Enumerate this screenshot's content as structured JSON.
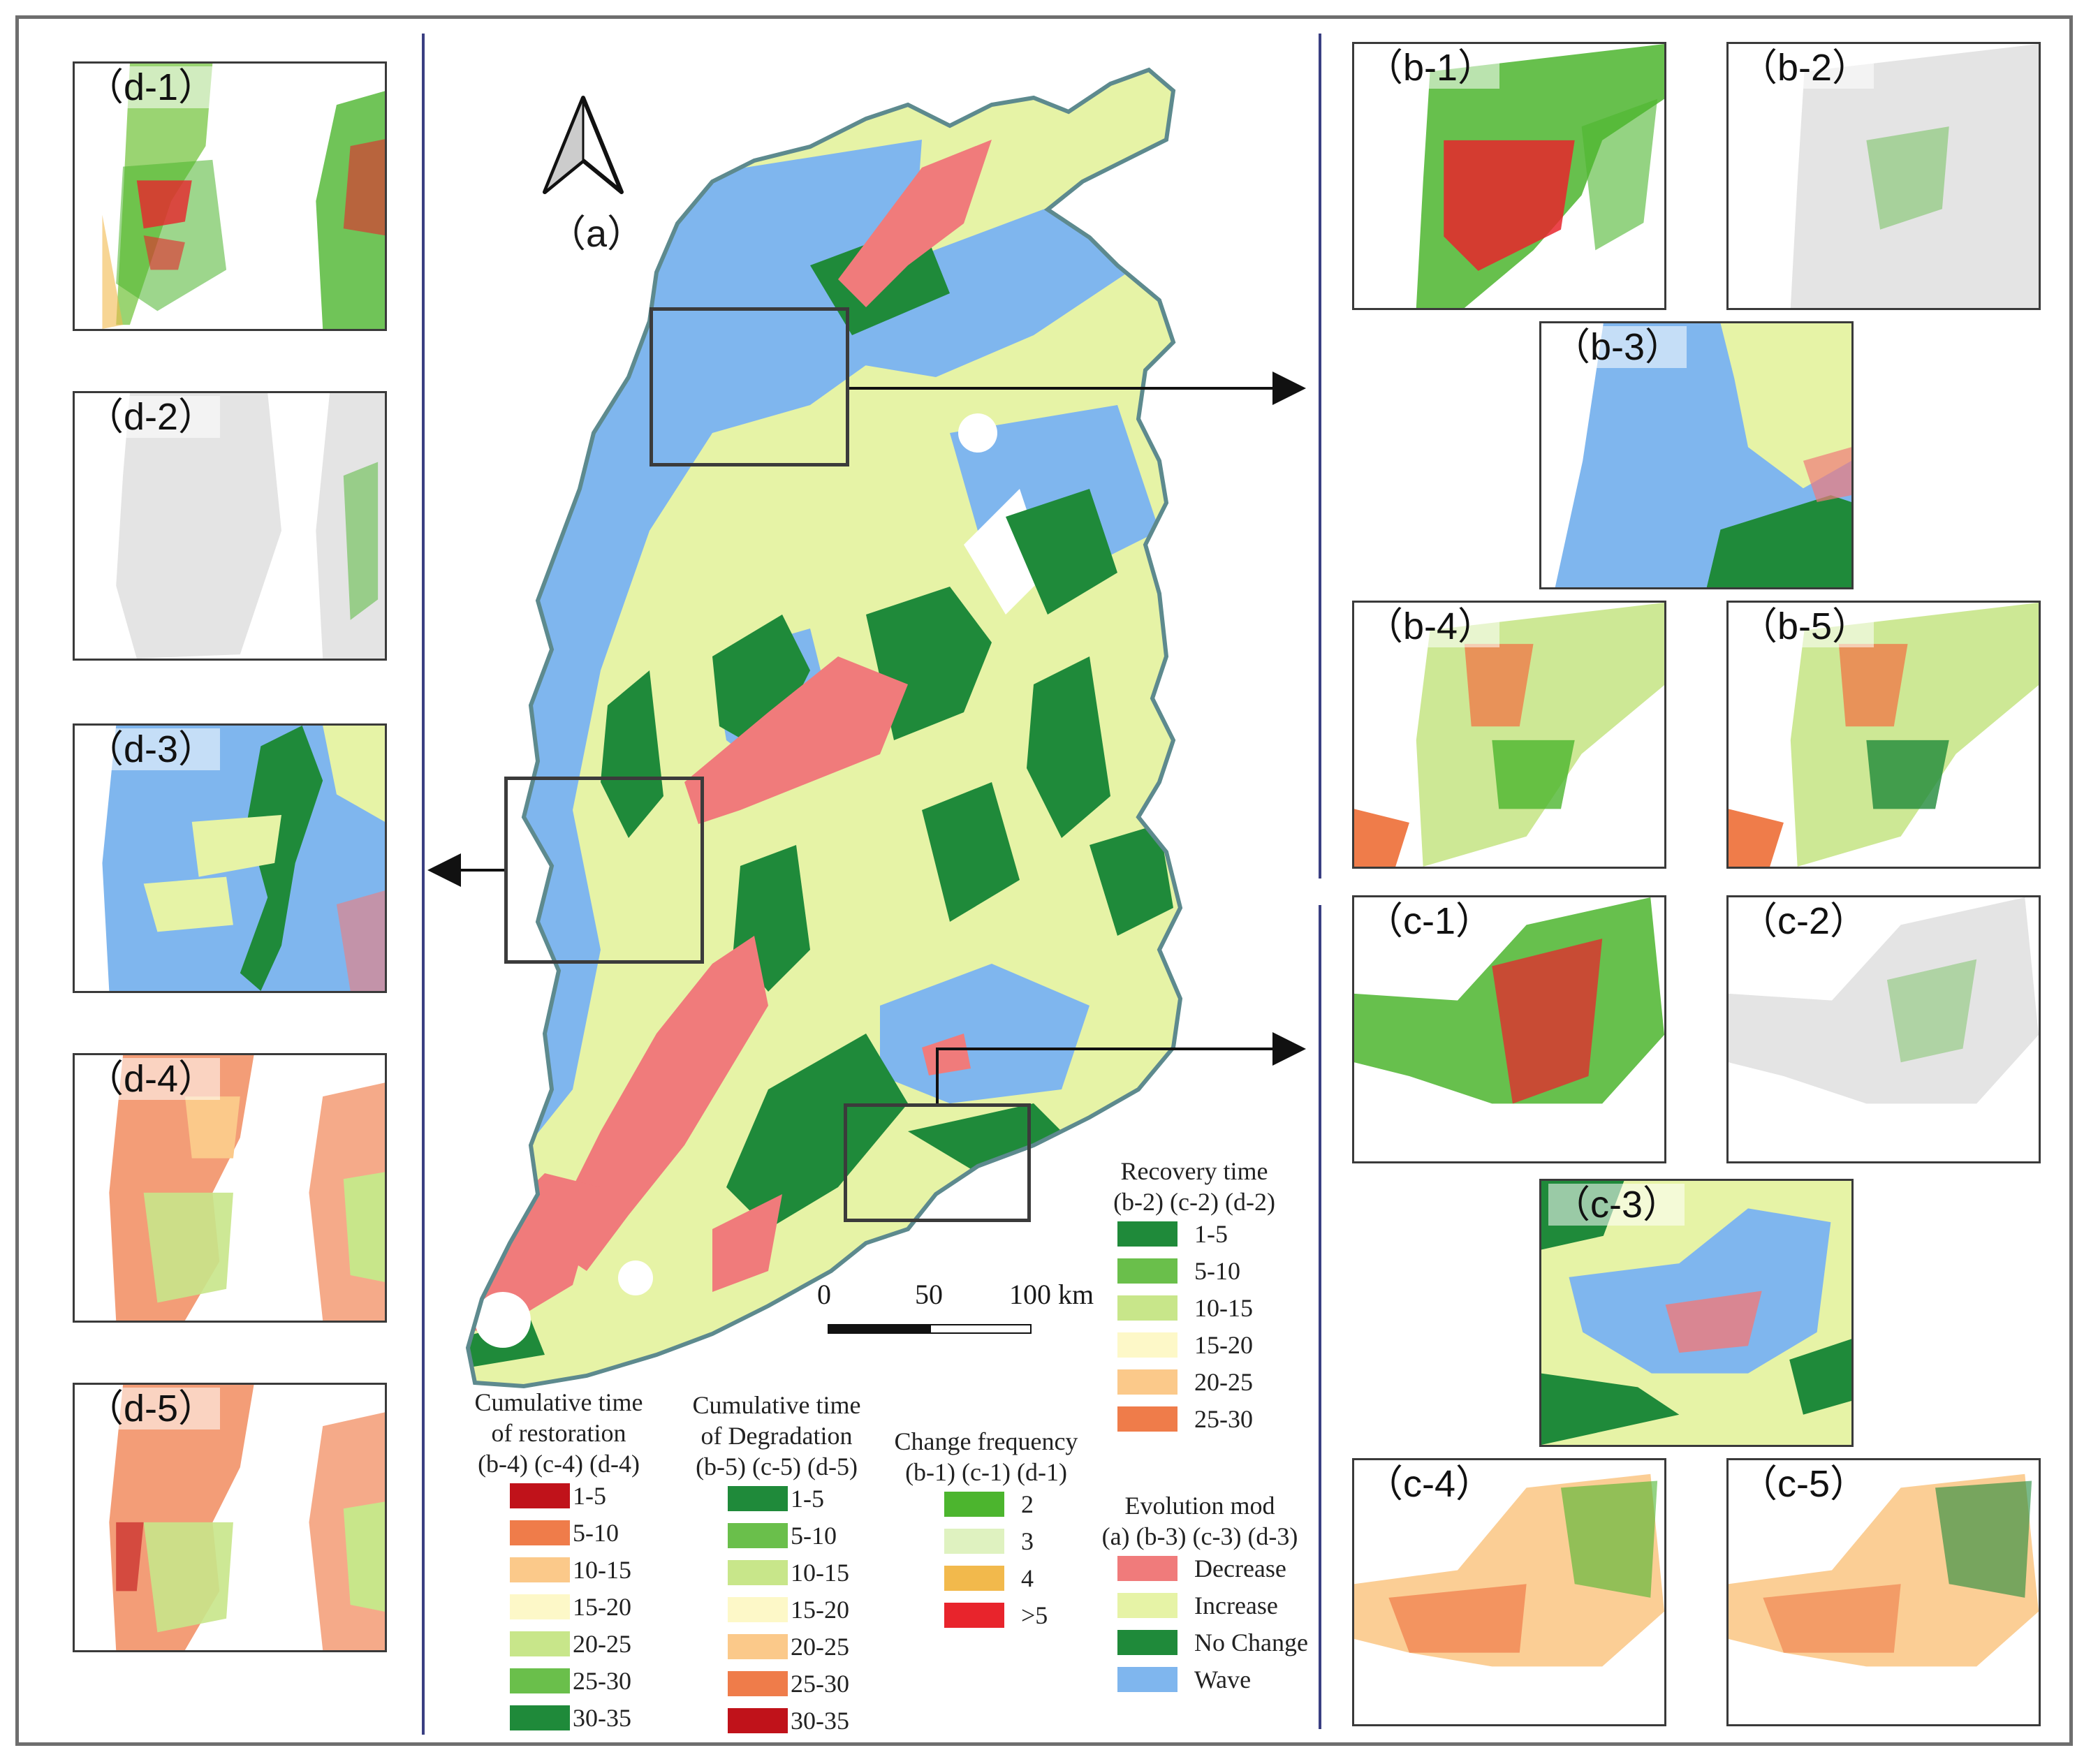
{
  "main_label": "（a）",
  "panels": {
    "d1": "（d-1）",
    "d2": "（d-2）",
    "d3": "（d-3）",
    "d4": "（d-4）",
    "d5": "（d-5）",
    "b1": "（b-1）",
    "b2": "（b-2）",
    "b3": "（b-3）",
    "b4": "（b-4）",
    "b5": "（b-5）",
    "c1": "（c-1）",
    "c2": "（c-2）",
    "c3": "（c-3）",
    "c4": "（c-4）",
    "c5": "（c-5）"
  },
  "scale": {
    "t0": "0",
    "t50": "50",
    "t100": "100 km"
  },
  "legends": {
    "recovery": {
      "title": "Recovery time\n(b-2) (c-2) (d-2)",
      "items": [
        {
          "label": "1-5",
          "color": "#1f8a3a"
        },
        {
          "label": "5-10",
          "color": "#6abf4b"
        },
        {
          "label": "10-15",
          "color": "#c8e68a"
        },
        {
          "label": "15-20",
          "color": "#fdf8c8"
        },
        {
          "label": "20-25",
          "color": "#fbc98a"
        },
        {
          "label": "25-30",
          "color": "#ef7c4a"
        }
      ]
    },
    "restoration": {
      "title": "Cumulative time\nof restoration\n(b-4) (c-4) (d-4)",
      "items": [
        {
          "label": "1-5",
          "color": "#c0121a"
        },
        {
          "label": "5-10",
          "color": "#ef7c4a"
        },
        {
          "label": "10-15",
          "color": "#fbc98a"
        },
        {
          "label": "15-20",
          "color": "#fdf8c8"
        },
        {
          "label": "20-25",
          "color": "#c8e68a"
        },
        {
          "label": "25-30",
          "color": "#6abf4b"
        },
        {
          "label": "30-35",
          "color": "#1f8a3a"
        }
      ]
    },
    "degradation": {
      "title": "Cumulative time\nof Degradation\n(b-5) (c-5) (d-5)",
      "items": [
        {
          "label": "1-5",
          "color": "#1f8a3a"
        },
        {
          "label": "5-10",
          "color": "#6abf4b"
        },
        {
          "label": "10-15",
          "color": "#c8e68a"
        },
        {
          "label": "15-20",
          "color": "#fdf8c8"
        },
        {
          "label": "20-25",
          "color": "#fbc98a"
        },
        {
          "label": "25-30",
          "color": "#ef7c4a"
        },
        {
          "label": "30-35",
          "color": "#c0121a"
        }
      ]
    },
    "frequency": {
      "title": "Change frequency\n(b-1) (c-1) (d-1)",
      "items": [
        {
          "label": "2",
          "color": "#4cb52e"
        },
        {
          "label": "3",
          "color": "#dff2c0"
        },
        {
          "label": "4",
          "color": "#f2b94c"
        },
        {
          "label": ">5",
          "color": "#e8242c"
        }
      ]
    },
    "evolution": {
      "title": "Evolution mod\n(a) (b-3) (c-3) (d-3)",
      "items": [
        {
          "label": "Decrease",
          "color": "#f07b7b"
        },
        {
          "label": "Increase",
          "color": "#e6f3a6"
        },
        {
          "label": "No Change",
          "color": "#1f8a3a"
        },
        {
          "label": "Wave",
          "color": "#7fb6ee"
        }
      ]
    }
  }
}
